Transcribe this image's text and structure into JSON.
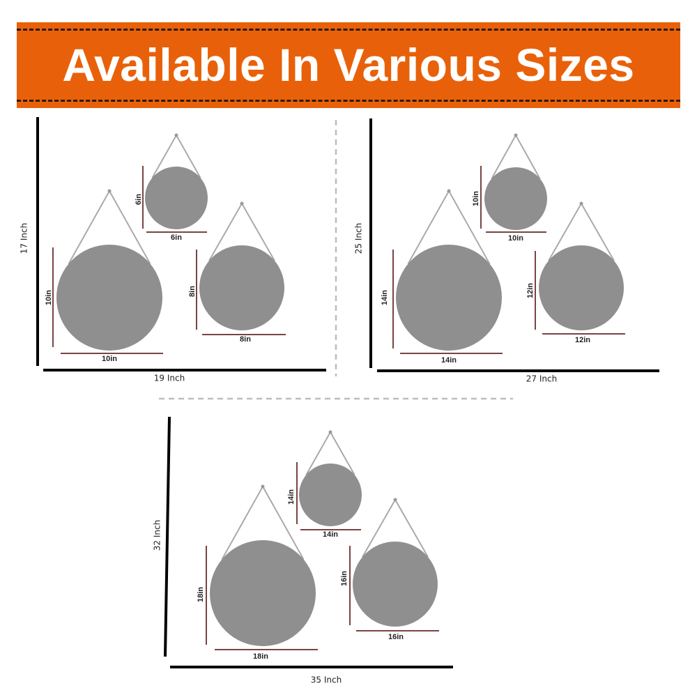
{
  "title": "Available In Various Sizes",
  "colors": {
    "banner": "#E8610A",
    "mirror": "#8f8f8f",
    "strap": "#a9a9a9",
    "dimension_line": "#7a4343",
    "frame_line": "#000000",
    "separator": "#bdbdbd"
  },
  "panels": [
    {
      "height_label": "17 Inch",
      "width_label": "19 Inch",
      "mirrors": [
        {
          "size": "10in"
        },
        {
          "size": "6in"
        },
        {
          "size": "8in"
        }
      ]
    },
    {
      "height_label": "25 Inch",
      "width_label": "27 Inch",
      "mirrors": [
        {
          "size": "14in"
        },
        {
          "size": "10in"
        },
        {
          "size": "12in"
        }
      ]
    },
    {
      "height_label": "32 Inch",
      "width_label": "35 Inch",
      "mirrors": [
        {
          "size": "18in"
        },
        {
          "size": "14in"
        },
        {
          "size": "16in"
        }
      ]
    }
  ]
}
